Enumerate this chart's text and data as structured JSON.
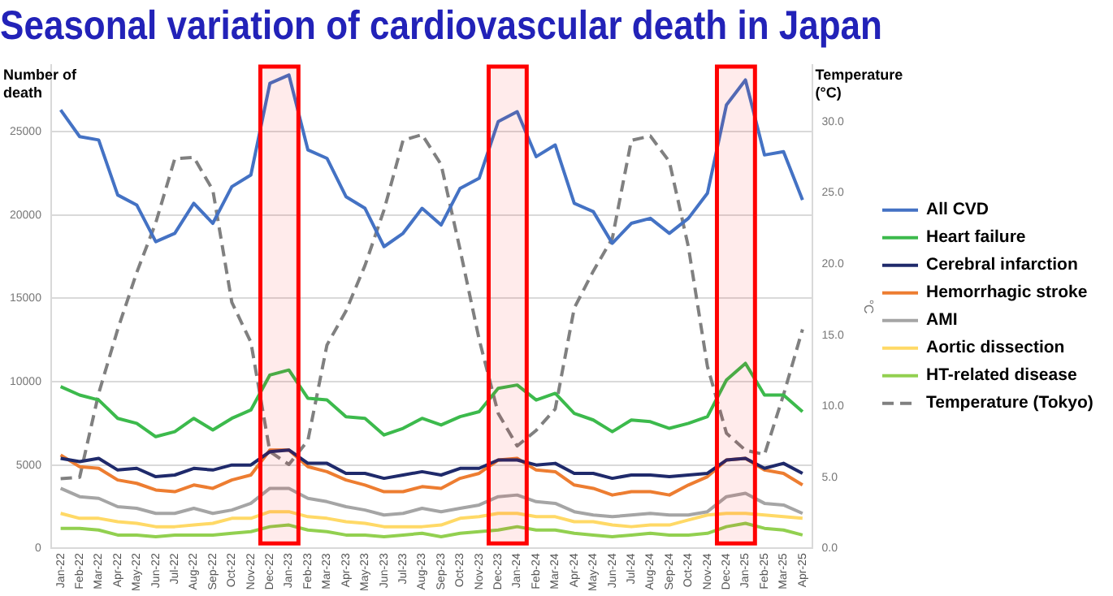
{
  "chart_data": {
    "type": "line",
    "title": "Seasonal variation of cardiovascular death in Japan",
    "ylabel": "Number of death",
    "y2label": "°C",
    "annotations": [
      "Temperature (°C)"
    ],
    "categories": [
      "Jan-22",
      "Feb-22",
      "Mar-22",
      "Apr-22",
      "May-22",
      "Jun-22",
      "Jul-22",
      "Aug-22",
      "Sep-22",
      "Oct-22",
      "Nov-22",
      "Dec-22",
      "Jan-23",
      "Feb-23",
      "Mar-23",
      "Apr-23",
      "May-23",
      "Jun-23",
      "Jul-23",
      "Aug-23",
      "Sep-23",
      "Oct-23",
      "Nov-23",
      "Dec-23",
      "Jan-24",
      "Feb-24",
      "Mar-24",
      "Apr-24",
      "May-24",
      "Jun-24",
      "Jul-24",
      "Aug-24",
      "Sep-24",
      "Oct-24",
      "Nov-24",
      "Dec-24",
      "Jan-25",
      "Feb-25",
      "Mar-25",
      "Apr-25"
    ],
    "series": [
      {
        "name": "All CVD",
        "color": "#4472c4",
        "values": [
          26300,
          24700,
          24500,
          21200,
          20600,
          18400,
          18900,
          20700,
          19500,
          21700,
          22400,
          27900,
          28400,
          23900,
          23400,
          21100,
          20400,
          18100,
          18900,
          20400,
          19400,
          21600,
          22200,
          25600,
          26200,
          23500,
          24200,
          20700,
          20200,
          18300,
          19500,
          19800,
          18900,
          19800,
          21300,
          26600,
          28100,
          23600,
          23800,
          20900
        ]
      },
      {
        "name": "Heart failure",
        "color": "#3cba4c",
        "values": [
          9700,
          9200,
          8900,
          7800,
          7500,
          6700,
          7000,
          7800,
          7100,
          7800,
          8300,
          10400,
          10700,
          9000,
          8900,
          7900,
          7800,
          6800,
          7200,
          7800,
          7400,
          7900,
          8200,
          9600,
          9800,
          8900,
          9300,
          8100,
          7700,
          7000,
          7700,
          7600,
          7200,
          7500,
          7900,
          10100,
          11100,
          9200,
          9200,
          8200
        ]
      },
      {
        "name": "Cerebral infarction",
        "color": "#1f2a6b",
        "values": [
          5400,
          5200,
          5400,
          4700,
          4800,
          4300,
          4400,
          4800,
          4700,
          5000,
          5000,
          5800,
          5900,
          5100,
          5100,
          4500,
          4500,
          4200,
          4400,
          4600,
          4400,
          4800,
          4800,
          5300,
          5300,
          5000,
          5100,
          4500,
          4500,
          4200,
          4400,
          4400,
          4300,
          4400,
          4500,
          5300,
          5400,
          4800,
          5100,
          4500
        ]
      },
      {
        "name": "Hemorrhagic stroke",
        "color": "#ed7d31",
        "values": [
          5600,
          4900,
          4800,
          4100,
          3900,
          3500,
          3400,
          3800,
          3600,
          4100,
          4400,
          5900,
          5900,
          4900,
          4600,
          4100,
          3800,
          3400,
          3400,
          3700,
          3600,
          4200,
          4500,
          5300,
          5400,
          4700,
          4600,
          3800,
          3600,
          3200,
          3400,
          3400,
          3200,
          3800,
          4300,
          5300,
          5400,
          4700,
          4500,
          3800
        ]
      },
      {
        "name": "AMI",
        "color": "#a5a5a5",
        "values": [
          3600,
          3100,
          3000,
          2500,
          2400,
          2100,
          2100,
          2400,
          2100,
          2300,
          2700,
          3600,
          3600,
          3000,
          2800,
          2500,
          2300,
          2000,
          2100,
          2400,
          2200,
          2400,
          2600,
          3100,
          3200,
          2800,
          2700,
          2200,
          2000,
          1900,
          2000,
          2100,
          2000,
          2000,
          2200,
          3100,
          3300,
          2700,
          2600,
          2100
        ]
      },
      {
        "name": "Aortic dissection",
        "color": "#ffd966",
        "values": [
          2100,
          1800,
          1800,
          1600,
          1500,
          1300,
          1300,
          1400,
          1500,
          1800,
          1800,
          2200,
          2200,
          1900,
          1800,
          1600,
          1500,
          1300,
          1300,
          1300,
          1400,
          1800,
          1900,
          2100,
          2100,
          1900,
          1900,
          1600,
          1600,
          1400,
          1300,
          1400,
          1400,
          1700,
          2000,
          2100,
          2100,
          2000,
          1900,
          1800
        ]
      },
      {
        "name": "HT-related disease",
        "color": "#92d050",
        "values": [
          1200,
          1200,
          1100,
          800,
          800,
          700,
          800,
          800,
          800,
          900,
          1000,
          1300,
          1400,
          1100,
          1000,
          800,
          800,
          700,
          800,
          900,
          700,
          900,
          1000,
          1100,
          1300,
          1100,
          1100,
          900,
          800,
          700,
          800,
          900,
          800,
          800,
          900,
          1300,
          1500,
          1200,
          1100,
          800
        ]
      },
      {
        "name": "Temperature (Tokyo)",
        "color": "#808080",
        "axis": "y2",
        "line_style": "dashed",
        "values": [
          4.9,
          5.0,
          10.9,
          15.4,
          19.4,
          22.9,
          27.4,
          27.5,
          25.2,
          17.3,
          14.5,
          6.8,
          5.9,
          7.6,
          14.3,
          16.7,
          19.9,
          23.8,
          28.7,
          29.1,
          27.0,
          21.0,
          14.7,
          9.5,
          7.2,
          8.3,
          9.8,
          16.9,
          19.5,
          21.8,
          28.7,
          29.0,
          27.2,
          21.2,
          12.8,
          8.1,
          6.9,
          6.6,
          10.8,
          15.4
        ]
      }
    ],
    "ylim": [
      0,
      29000
    ],
    "yticks": [
      0,
      5000,
      10000,
      15000,
      20000,
      25000
    ],
    "y2lim": [
      0,
      34
    ],
    "y2ticks": [
      {
        "value": 0,
        "label": "0.0"
      },
      {
        "value": 5,
        "label": "5.0"
      },
      {
        "value": 10,
        "label": "10.0"
      },
      {
        "value": 15,
        "label": "15.0"
      },
      {
        "value": 20,
        "label": "20.0"
      },
      {
        "value": 25,
        "label": "25.0"
      },
      {
        "value": 30,
        "label": "30.0"
      }
    ],
    "bands": [
      {
        "axis": "x",
        "from": "Dec-22",
        "to": "Jan-23",
        "color": "#ff0000"
      },
      {
        "axis": "x",
        "from": "Dec-23",
        "to": "Jan-24",
        "color": "#ff0000"
      },
      {
        "axis": "x",
        "from": "Dec-24",
        "to": "Jan-25",
        "color": "#ff0000"
      }
    ],
    "grid": "y",
    "legend": "right",
    "marker": "none",
    "line_style": "solid"
  }
}
